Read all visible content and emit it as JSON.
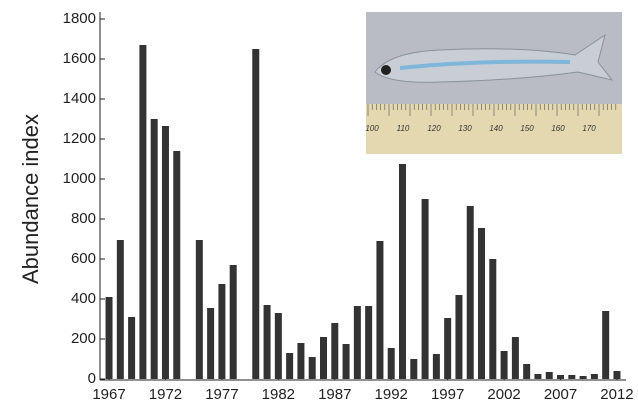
{
  "chart_data": {
    "type": "bar",
    "y_label": "Abundance index",
    "color": "#333333",
    "x": [
      1967,
      1968,
      1969,
      1970,
      1971,
      1972,
      1973,
      1974,
      1975,
      1976,
      1977,
      1978,
      1979,
      1980,
      1981,
      1982,
      1983,
      1984,
      1985,
      1986,
      1987,
      1988,
      1989,
      1990,
      1991,
      1992,
      1993,
      1994,
      1995,
      1996,
      1997,
      1998,
      1999,
      2000,
      2001,
      2002,
      2003,
      2004,
      2005,
      2006,
      2007,
      2008,
      2009,
      2010,
      2011,
      2012
    ],
    "values": [
      410,
      695,
      310,
      1670,
      1300,
      1265,
      1140,
      null,
      695,
      355,
      475,
      570,
      null,
      1650,
      370,
      330,
      130,
      180,
      110,
      210,
      280,
      175,
      365,
      365,
      690,
      155,
      1075,
      100,
      900,
      125,
      305,
      420,
      865,
      755,
      600,
      140,
      210,
      75,
      25,
      35,
      20,
      20,
      15,
      25,
      340,
      40
    ],
    "xlim": [
      1966.2,
      2012.8
    ],
    "xticks": [
      1967,
      1972,
      1977,
      1982,
      1987,
      1992,
      1997,
      2002,
      2007,
      2012
    ],
    "ylim": [
      0,
      1800
    ],
    "yticks": [
      0,
      200,
      400,
      600,
      800,
      1000,
      1200,
      1400,
      1600,
      1800
    ],
    "inset_ruler_labels": [
      "100",
      "110",
      "120",
      "130",
      "140",
      "150",
      "160",
      "170"
    ]
  }
}
